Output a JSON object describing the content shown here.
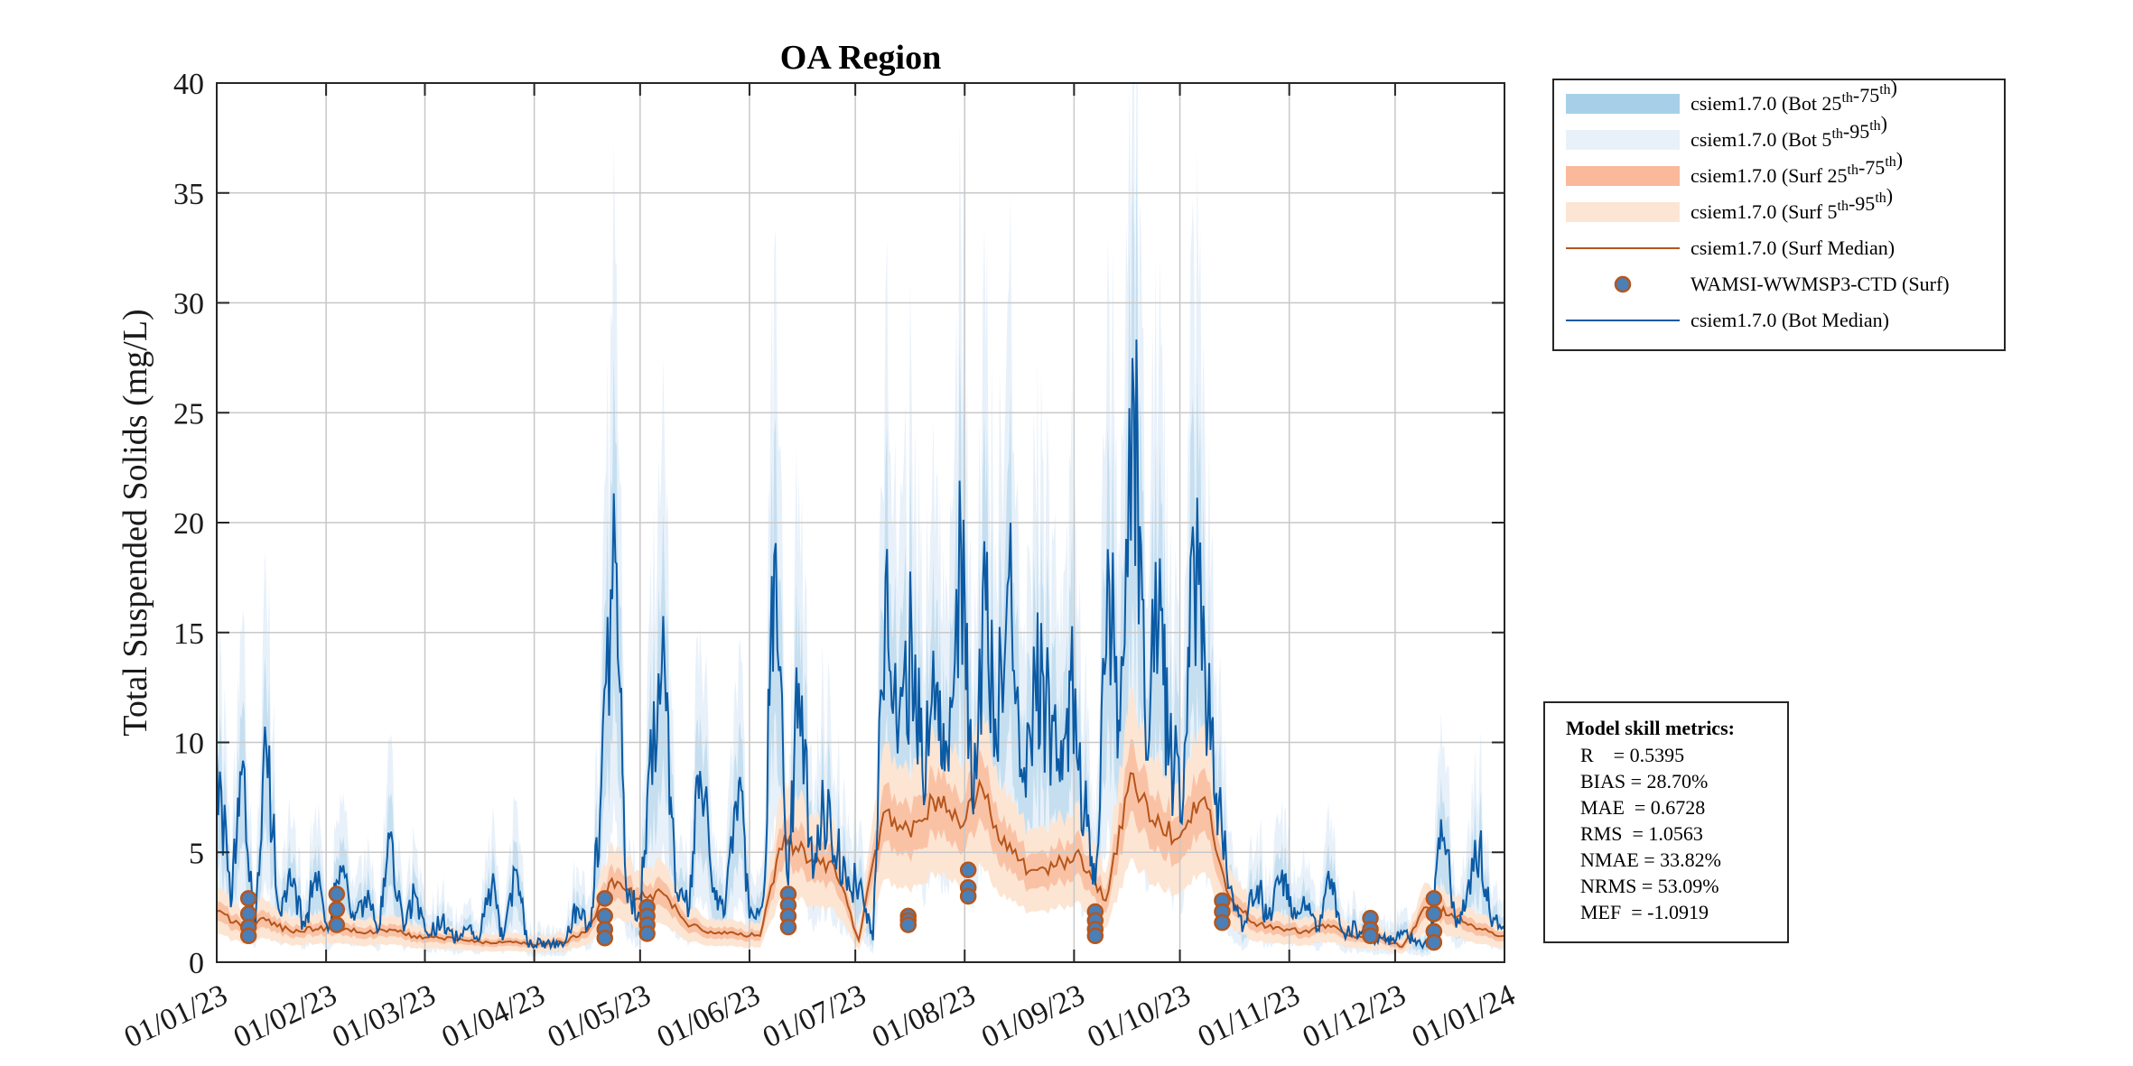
{
  "chart_data": {
    "type": "line",
    "title": "OA Region",
    "ylabel": "Total Suspended Solids (mg/L)",
    "xlabel": "",
    "ylim": [
      0,
      40
    ],
    "yticks": [
      0,
      5,
      10,
      15,
      20,
      25,
      30,
      35,
      40
    ],
    "xlim": [
      "2023-01-01",
      "2024-01-01"
    ],
    "xtick_labels": [
      "01/01/23",
      "01/02/23",
      "01/03/23",
      "01/04/23",
      "01/05/23",
      "01/06/23",
      "01/07/23",
      "01/08/23",
      "01/09/23",
      "01/10/23",
      "01/11/23",
      "01/12/23",
      "01/01/24"
    ],
    "grid": true,
    "legend_position": "outside-top-right",
    "colors": {
      "bot_iqr": "#a8cfe8",
      "bot_p5_95": "#e8f1fa",
      "surf_iqr": "#f9b99a",
      "surf_p5_95": "#fde5d3",
      "surf_median": "#b5561c",
      "bot_median": "#0b5aa4",
      "obs_fill": "#4a7fb8",
      "obs_edge": "#b5561c"
    },
    "legend": [
      {
        "kind": "patch",
        "fill": "#a8cfe8",
        "text": "csiem1.7.0 (Bot 25",
        "sup1": "th",
        "mid": "-75",
        "sup2": "th",
        "end": ")"
      },
      {
        "kind": "patch",
        "fill": "#e8f1fa",
        "text": "csiem1.7.0 (Bot 5",
        "sup1": "th",
        "mid": "-95",
        "sup2": "th",
        "end": ")"
      },
      {
        "kind": "patch",
        "fill": "#f9b99a",
        "text": "csiem1.7.0 (Surf 25",
        "sup1": "th",
        "mid": "-75",
        "sup2": "th",
        "end": ")"
      },
      {
        "kind": "patch",
        "fill": "#fde5d3",
        "text": "csiem1.7.0 (Surf 5",
        "sup1": "th",
        "mid": "-95",
        "sup2": "th",
        "end": ")"
      },
      {
        "kind": "line",
        "stroke": "#b5561c",
        "text": "csiem1.7.0 (Surf Median)"
      },
      {
        "kind": "marker",
        "text": "WAMSI-WWMSP3-CTD (Surf)"
      },
      {
        "kind": "line",
        "stroke": "#0b5aa4",
        "text": "csiem1.7.0 (Bot Median)"
      }
    ],
    "metrics": {
      "heading": "Model skill metrics:",
      "lines": [
        "R    = 0.5395",
        "BIAS = 28.70%",
        "MAE  = 0.6728",
        "RMS  = 1.0563",
        "NMAE = 33.82%",
        "NRMS = 53.09%",
        "MEF  = -1.0919"
      ]
    },
    "series": [
      {
        "name": "csiem1.7.0 (Bot Median)",
        "x": [
          "2023-01-01",
          "2023-01-05",
          "2023-01-08",
          "2023-01-12",
          "2023-01-15",
          "2023-01-19",
          "2023-01-22",
          "2023-01-26",
          "2023-01-29",
          "2023-02-02",
          "2023-02-05",
          "2023-02-09",
          "2023-02-12",
          "2023-02-16",
          "2023-02-19",
          "2023-02-23",
          "2023-02-26",
          "2023-03-02",
          "2023-03-06",
          "2023-03-09",
          "2023-03-13",
          "2023-03-16",
          "2023-03-20",
          "2023-03-23",
          "2023-03-27",
          "2023-03-30",
          "2023-04-03",
          "2023-04-06",
          "2023-04-10",
          "2023-04-13",
          "2023-04-17",
          "2023-04-20",
          "2023-04-24",
          "2023-04-27",
          "2023-05-01",
          "2023-05-04",
          "2023-05-08",
          "2023-05-11",
          "2023-05-15",
          "2023-05-18",
          "2023-05-22",
          "2023-05-25",
          "2023-05-29",
          "2023-06-01",
          "2023-06-05",
          "2023-06-08",
          "2023-06-12",
          "2023-06-15",
          "2023-06-19",
          "2023-06-22",
          "2023-06-26",
          "2023-06-29",
          "2023-07-03",
          "2023-07-06",
          "2023-07-10",
          "2023-07-13",
          "2023-07-17",
          "2023-07-20",
          "2023-07-24",
          "2023-07-27",
          "2023-07-31",
          "2023-08-03",
          "2023-08-07",
          "2023-08-10",
          "2023-08-14",
          "2023-08-17",
          "2023-08-21",
          "2023-08-24",
          "2023-08-28",
          "2023-08-31",
          "2023-09-04",
          "2023-09-07",
          "2023-09-11",
          "2023-09-14",
          "2023-09-18",
          "2023-09-21",
          "2023-09-25",
          "2023-09-28",
          "2023-10-02",
          "2023-10-05",
          "2023-10-09",
          "2023-10-12",
          "2023-10-16",
          "2023-10-19",
          "2023-10-23",
          "2023-10-26",
          "2023-10-30",
          "2023-11-02",
          "2023-11-06",
          "2023-11-09",
          "2023-11-13",
          "2023-11-16",
          "2023-11-20",
          "2023-11-23",
          "2023-11-27",
          "2023-11-30",
          "2023-12-04",
          "2023-12-07",
          "2023-12-11",
          "2023-12-14",
          "2023-12-18",
          "2023-12-21",
          "2023-12-25",
          "2023-12-28",
          "2024-01-01"
        ],
        "values": [
          9.6,
          2.5,
          8.5,
          1.8,
          9.9,
          2.2,
          3.5,
          1.6,
          4.1,
          1.7,
          4.4,
          1.9,
          3.0,
          1.5,
          5.7,
          1.4,
          3.2,
          1.2,
          2.0,
          1.1,
          1.5,
          1.0,
          3.5,
          1.0,
          4.2,
          0.9,
          0.9,
          0.8,
          1.0,
          2.5,
          1.6,
          8.0,
          18.2,
          3.5,
          2.0,
          10.6,
          13.2,
          3.2,
          2.5,
          8.7,
          3.4,
          2.2,
          8.2,
          2.0,
          3.0,
          18.5,
          3.5,
          12.7,
          3.8,
          7.0,
          5.1,
          3.9,
          3.2,
          1.0,
          18.8,
          9.5,
          14.8,
          8.7,
          12.6,
          9.8,
          18.8,
          7.5,
          16.0,
          9.8,
          20.0,
          8.8,
          12.8,
          11.7,
          8.2,
          12.8,
          7.0,
          3.5,
          17.2,
          10.5,
          25.4,
          11.8,
          15.5,
          9.5,
          7.5,
          18.5,
          11.2,
          7.2,
          3.0,
          1.6,
          3.5,
          2.0,
          4.2,
          2.0,
          2.6,
          1.5,
          3.8,
          1.4,
          1.5,
          1.2,
          1.1,
          1.0,
          1.4,
          0.8,
          0.9,
          6.5,
          2.0,
          2.5,
          5.5,
          2.0,
          1.5
        ]
      },
      {
        "name": "csiem1.7.0 (Surf Median)",
        "x": [
          "2023-01-01",
          "2023-01-08",
          "2023-01-15",
          "2023-01-22",
          "2023-01-29",
          "2023-02-05",
          "2023-02-12",
          "2023-02-19",
          "2023-02-26",
          "2023-03-05",
          "2023-03-12",
          "2023-03-19",
          "2023-03-26",
          "2023-04-02",
          "2023-04-09",
          "2023-04-16",
          "2023-04-23",
          "2023-04-30",
          "2023-05-07",
          "2023-05-14",
          "2023-05-21",
          "2023-05-28",
          "2023-06-04",
          "2023-06-11",
          "2023-06-18",
          "2023-06-25",
          "2023-07-02",
          "2023-07-09",
          "2023-07-16",
          "2023-07-23",
          "2023-07-30",
          "2023-08-06",
          "2023-08-13",
          "2023-08-20",
          "2023-08-27",
          "2023-09-03",
          "2023-09-10",
          "2023-09-17",
          "2023-09-24",
          "2023-10-01",
          "2023-10-08",
          "2023-10-15",
          "2023-10-22",
          "2023-10-29",
          "2023-11-05",
          "2023-11-12",
          "2023-11-19",
          "2023-11-26",
          "2023-12-03",
          "2023-12-10",
          "2023-12-17",
          "2023-12-24",
          "2024-01-01"
        ],
        "values": [
          2.3,
          1.6,
          1.9,
          1.4,
          1.5,
          1.6,
          1.3,
          1.5,
          1.2,
          1.1,
          1.0,
          0.9,
          0.9,
          0.8,
          0.9,
          1.4,
          3.8,
          2.9,
          3.2,
          1.8,
          1.4,
          1.3,
          1.2,
          5.8,
          4.6,
          4.4,
          1.0,
          6.8,
          6.1,
          7.4,
          6.5,
          7.9,
          5.1,
          4.2,
          4.4,
          4.8,
          2.8,
          8.6,
          6.2,
          5.7,
          7.5,
          3.0,
          1.8,
          1.6,
          1.4,
          1.7,
          1.2,
          1.1,
          0.7,
          2.5,
          2.2,
          1.5,
          1.2
        ]
      },
      {
        "name": "WAMSI-WWMSP3-CTD (Surf)",
        "x": [
          "2023-01-10",
          "2023-01-10",
          "2023-01-10",
          "2023-01-10",
          "2023-02-04",
          "2023-02-04",
          "2023-02-04",
          "2023-04-21",
          "2023-04-21",
          "2023-04-21",
          "2023-04-21",
          "2023-05-03",
          "2023-05-03",
          "2023-05-03",
          "2023-05-03",
          "2023-06-12",
          "2023-06-12",
          "2023-06-12",
          "2023-06-12",
          "2023-07-16",
          "2023-07-16",
          "2023-07-16",
          "2023-08-02",
          "2023-08-02",
          "2023-08-02",
          "2023-09-07",
          "2023-09-07",
          "2023-09-07",
          "2023-09-07",
          "2023-10-13",
          "2023-10-13",
          "2023-10-13",
          "2023-11-24",
          "2023-11-24",
          "2023-11-24",
          "2023-12-12",
          "2023-12-12",
          "2023-12-12",
          "2023-12-12"
        ],
        "values": [
          2.9,
          2.2,
          1.6,
          1.2,
          3.1,
          2.4,
          1.7,
          2.9,
          2.1,
          1.5,
          1.1,
          2.5,
          2.1,
          1.7,
          1.3,
          3.1,
          2.6,
          2.1,
          1.6,
          2.1,
          1.9,
          1.7,
          4.2,
          3.4,
          3.0,
          2.3,
          1.9,
          1.5,
          1.2,
          2.8,
          2.3,
          1.8,
          2.0,
          1.5,
          1.2,
          2.9,
          2.2,
          1.4,
          0.9
        ]
      }
    ]
  }
}
